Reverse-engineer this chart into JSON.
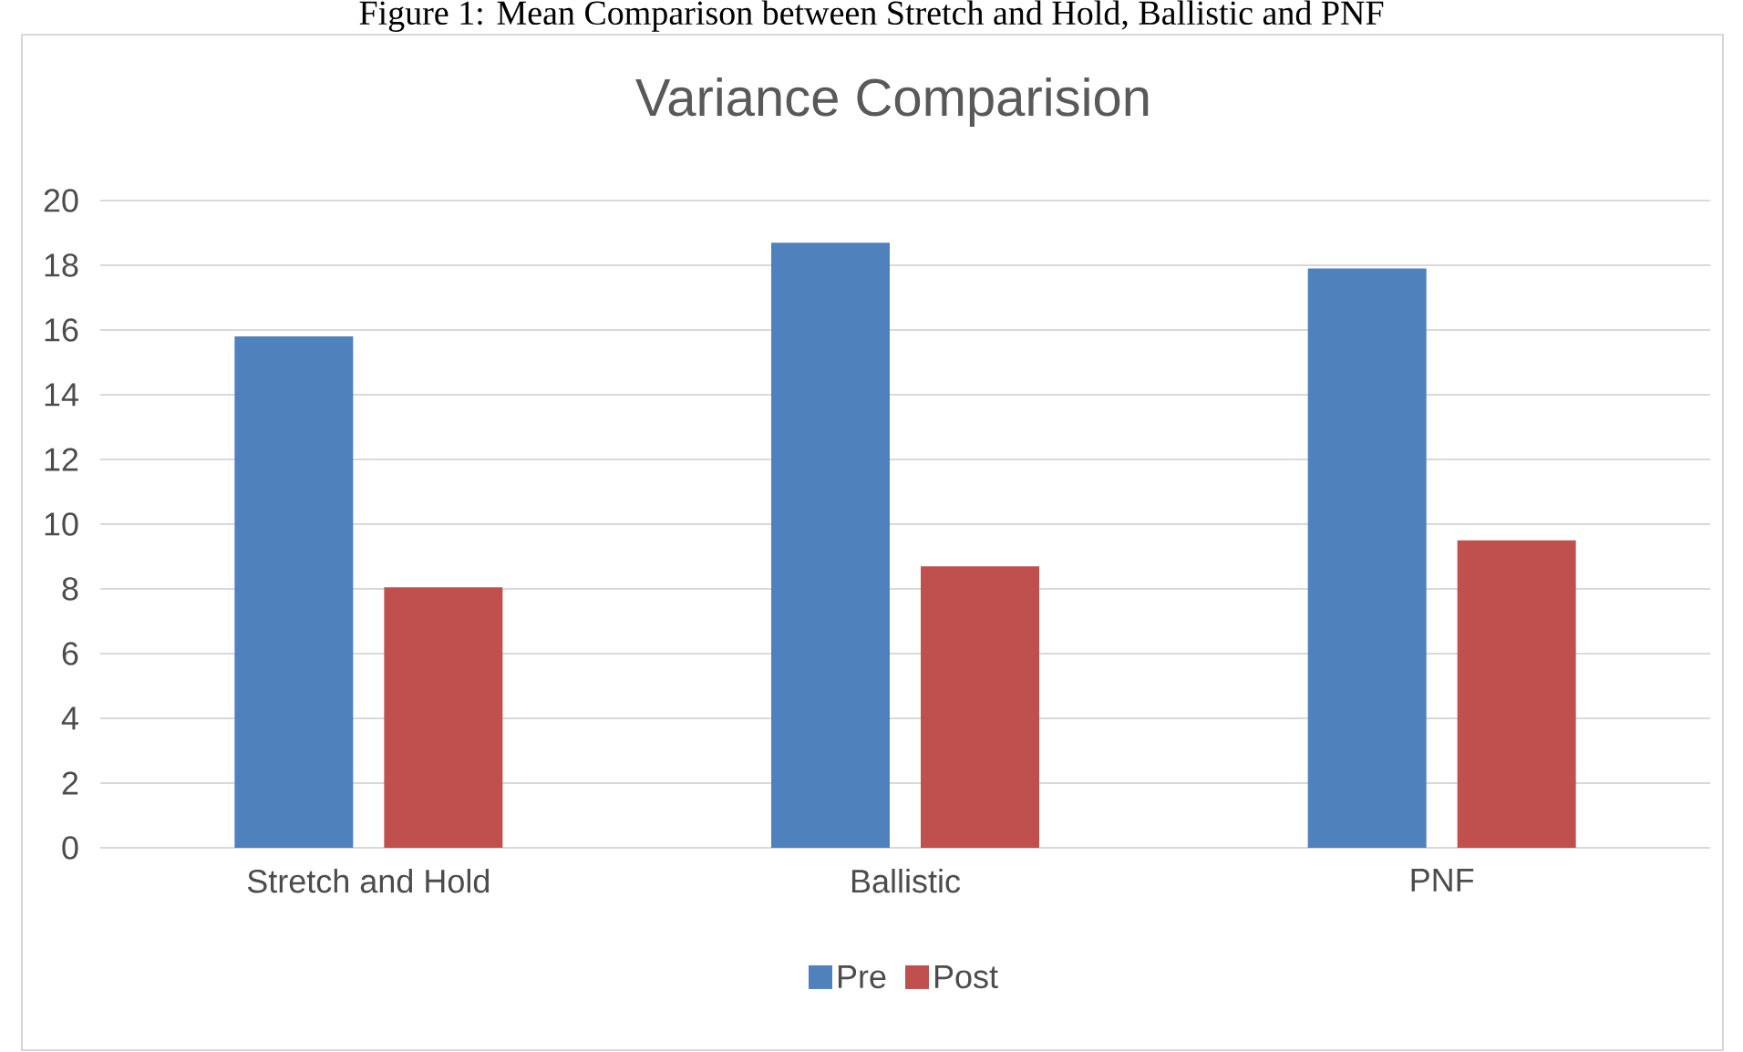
{
  "chart_data": {
    "type": "bar",
    "title": "Variance Comparision",
    "annotations": [
      "Figure 1: Mean Comparison between Stretch and Hold, Ballistic and PNF"
    ],
    "categories": [
      "Stretch and Hold",
      "Ballistic",
      "PNF"
    ],
    "series": [
      {
        "name": "Pre",
        "color": "#4f81bd",
        "values": [
          15.8,
          18.7,
          17.9
        ]
      },
      {
        "name": "Post",
        "color": "#c0504d",
        "values": [
          8.05,
          8.7,
          9.5
        ]
      }
    ],
    "ylim": [
      0,
      20
    ],
    "yticks": [
      0,
      2,
      4,
      6,
      8,
      10,
      12,
      14,
      16,
      18,
      20
    ],
    "grid": "y",
    "legend": "bottom"
  }
}
